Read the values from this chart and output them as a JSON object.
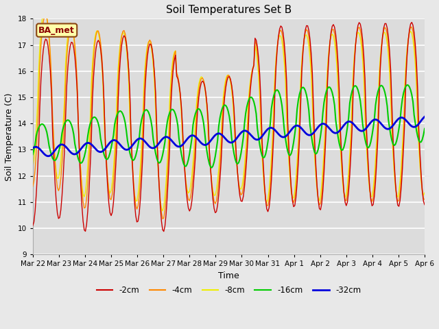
{
  "title": "Soil Temperatures Set B",
  "xlabel": "Time",
  "ylabel": "Soil Temperature (C)",
  "ylim": [
    9.0,
    18.0
  ],
  "yticks": [
    9.0,
    10.0,
    11.0,
    12.0,
    13.0,
    14.0,
    15.0,
    16.0,
    17.0,
    18.0
  ],
  "background_color": "#e8e8e8",
  "plot_bg_color": "#dcdcdc",
  "legend_label": "BA_met",
  "colors": {
    "2cm": "#cc0000",
    "4cm": "#ff8800",
    "8cm": "#eeee00",
    "16cm": "#00cc00",
    "32cm": "#0000dd"
  },
  "x_labels": [
    "Mar 22",
    "Mar 23",
    "Mar 24",
    "Mar 25",
    "Mar 26",
    "Mar 27",
    "Mar 28",
    "Mar 29",
    "Mar 30",
    "Mar 31",
    "Apr 1",
    "Apr 2",
    "Apr 3",
    "Apr 4",
    "Apr 5",
    "Apr 6"
  ],
  "num_points": 336
}
